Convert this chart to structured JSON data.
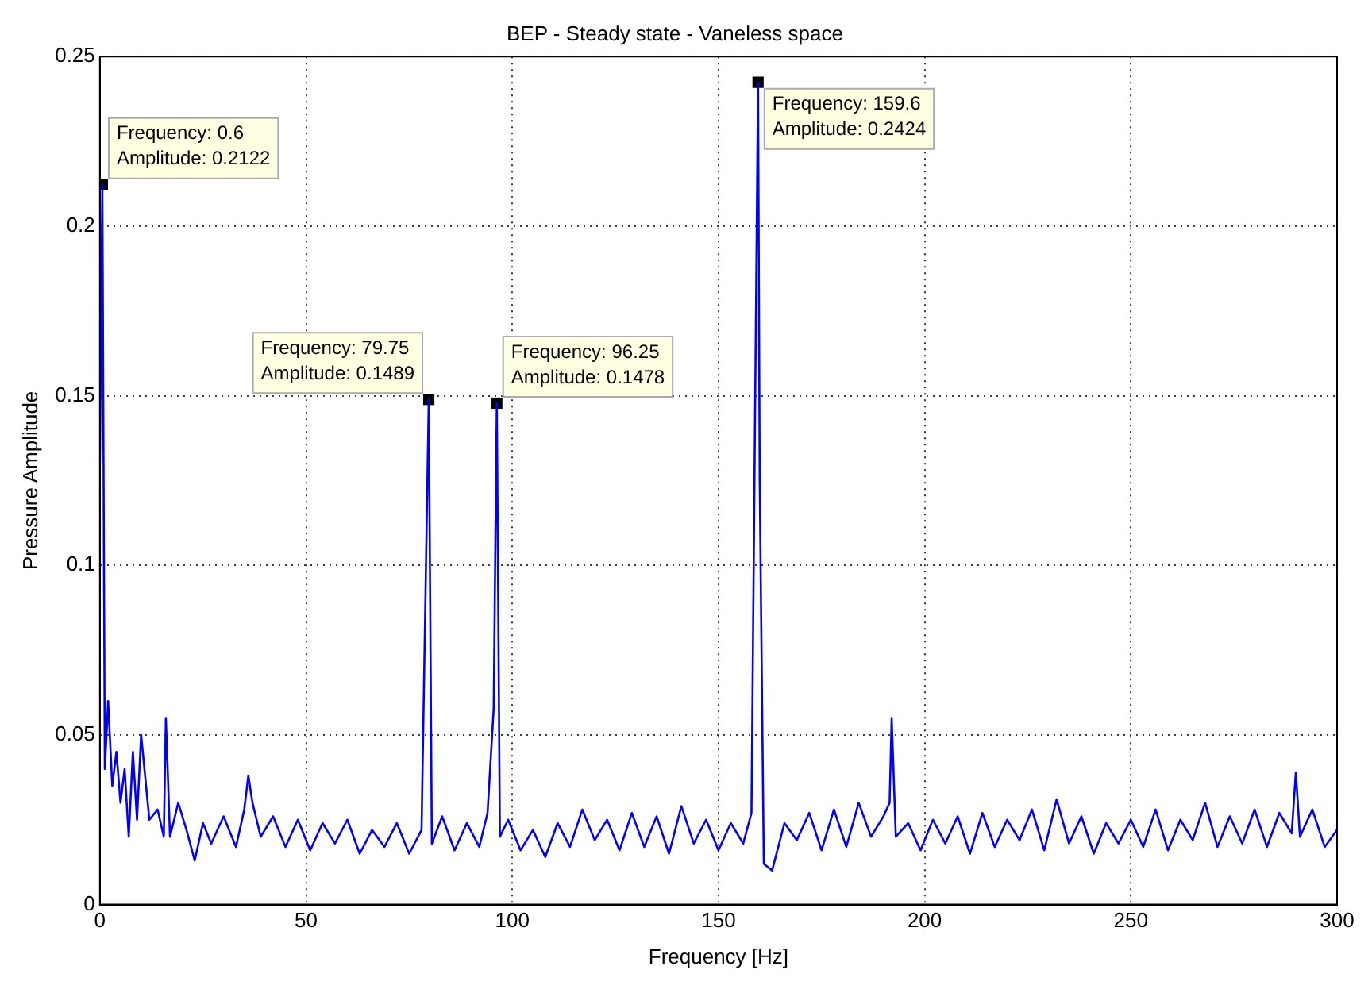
{
  "chart_data": {
    "type": "line",
    "title": "BEP - Steady state - Vaneless space",
    "xlabel": "Frequency [Hz]",
    "ylabel": "Pressure Amplitude",
    "xlim": [
      0,
      300
    ],
    "xticks": [
      0,
      50,
      100,
      150,
      200,
      250,
      300
    ],
    "ylim": [
      0,
      0.25
    ],
    "yticks": [
      0,
      0.05,
      0.1,
      0.15,
      0.2,
      0.25
    ],
    "grid": true,
    "legend": false,
    "series": [
      {
        "color": "#0000ff",
        "marker": "none",
        "x": [
          0,
          0.6,
          1.2,
          2,
          3,
          4,
          5,
          6,
          7,
          8,
          9,
          10,
          12,
          14,
          15.5,
          16,
          17,
          19,
          21,
          23,
          25,
          27,
          30,
          33,
          35,
          36,
          37,
          39,
          42,
          45,
          48,
          51,
          54,
          57,
          60,
          63,
          66,
          69,
          72,
          75,
          78,
          79.75,
          80.5,
          83,
          86,
          89,
          92,
          94,
          95.5,
          96.25,
          97,
          99,
          102,
          105,
          108,
          111,
          114,
          117,
          120,
          123,
          126,
          129,
          132,
          135,
          138,
          141,
          144,
          147,
          150,
          153,
          156,
          158,
          159.6,
          160,
          161,
          163,
          166,
          169,
          172,
          175,
          178,
          181,
          184,
          187,
          190,
          191.5,
          192,
          193,
          196,
          199,
          202,
          205,
          208,
          211,
          214,
          217,
          220,
          223,
          226,
          229,
          232,
          235,
          238,
          241,
          244,
          247,
          250,
          253,
          256,
          259,
          262,
          265,
          268,
          271,
          274,
          277,
          280,
          283,
          286,
          289,
          290,
          291,
          294,
          297,
          300
        ],
        "values": [
          0.13,
          0.2122,
          0.04,
          0.06,
          0.035,
          0.045,
          0.03,
          0.04,
          0.02,
          0.045,
          0.025,
          0.05,
          0.025,
          0.028,
          0.02,
          0.055,
          0.02,
          0.03,
          0.022,
          0.013,
          0.024,
          0.018,
          0.026,
          0.017,
          0.028,
          0.038,
          0.03,
          0.02,
          0.026,
          0.017,
          0.025,
          0.016,
          0.024,
          0.018,
          0.025,
          0.015,
          0.022,
          0.017,
          0.024,
          0.015,
          0.022,
          0.1489,
          0.018,
          0.026,
          0.016,
          0.024,
          0.017,
          0.027,
          0.058,
          0.1478,
          0.02,
          0.025,
          0.016,
          0.022,
          0.014,
          0.024,
          0.017,
          0.028,
          0.019,
          0.025,
          0.016,
          0.027,
          0.017,
          0.026,
          0.015,
          0.029,
          0.018,
          0.025,
          0.016,
          0.024,
          0.018,
          0.027,
          0.2424,
          0.125,
          0.012,
          0.01,
          0.024,
          0.019,
          0.027,
          0.016,
          0.028,
          0.017,
          0.03,
          0.02,
          0.026,
          0.03,
          0.055,
          0.02,
          0.024,
          0.016,
          0.025,
          0.018,
          0.026,
          0.015,
          0.027,
          0.017,
          0.025,
          0.019,
          0.028,
          0.016,
          0.031,
          0.018,
          0.026,
          0.015,
          0.024,
          0.018,
          0.025,
          0.017,
          0.028,
          0.016,
          0.025,
          0.019,
          0.03,
          0.017,
          0.026,
          0.018,
          0.028,
          0.017,
          0.027,
          0.021,
          0.039,
          0.02,
          0.028,
          0.017,
          0.022
        ]
      },
      {
        "type": "scatter",
        "color": "#000000",
        "marker": "square",
        "x": [
          0.6,
          79.75,
          96.25,
          159.6
        ],
        "values": [
          0.2122,
          0.1489,
          0.1478,
          0.2424
        ]
      }
    ],
    "annotations": [
      {
        "text": "Frequency: 0.6\nAmplitude: 0.2122",
        "x": 0.6,
        "y": 0.2122
      },
      {
        "text": "Frequency: 79.75\nAmplitude: 0.1489",
        "x": 79.75,
        "y": 0.1489
      },
      {
        "text": "Frequency: 96.25\nAmplitude: 0.1478",
        "x": 96.25,
        "y": 0.1478
      },
      {
        "text": "Frequency: 159.6\nAmplitude: 0.2424",
        "x": 159.6,
        "y": 0.2424
      }
    ]
  }
}
